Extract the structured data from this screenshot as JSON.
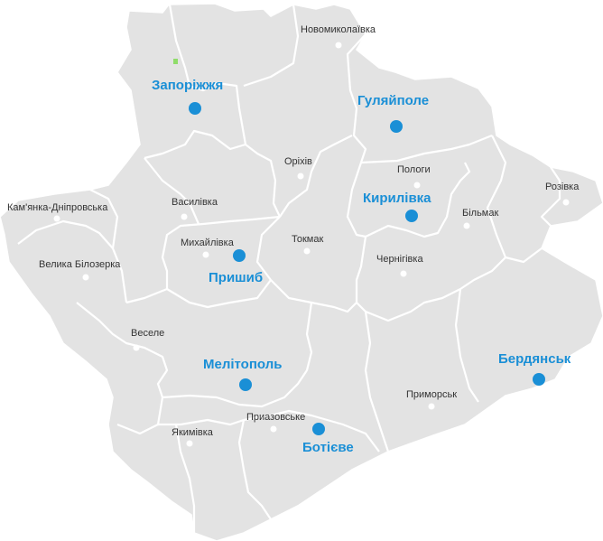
{
  "colors": {
    "land": "#e3e3e3",
    "border": "#ffffff",
    "major_city": "#1a8fd6",
    "minor_city": "#ffffff",
    "minor_label": "#333333",
    "background": "#ffffff"
  },
  "major_cities": [
    {
      "id": "zaporizhzhia",
      "name": "Запоріжжя"
    },
    {
      "id": "huliaipole",
      "name": "Гуляйполе"
    },
    {
      "id": "kyrylivka",
      "name": "Кирилівка"
    },
    {
      "id": "pryshyb",
      "name": "Пришиб"
    },
    {
      "id": "melitopol",
      "name": "Мелітополь"
    },
    {
      "id": "botieve",
      "name": "Ботієве"
    },
    {
      "id": "berdiansk",
      "name": "Бердянськ"
    }
  ],
  "minor_cities": [
    {
      "id": "novomykolaivka",
      "name": "Новомиколаївка"
    },
    {
      "id": "orikhiv",
      "name": "Оріхів"
    },
    {
      "id": "polohy",
      "name": "Пологи"
    },
    {
      "id": "rozivka",
      "name": "Розівка"
    },
    {
      "id": "bilmak",
      "name": "Більмак"
    },
    {
      "id": "kamianka",
      "name": "Кам'янка-Дніпровська"
    },
    {
      "id": "vasylivka",
      "name": "Василівка"
    },
    {
      "id": "mykhailivka",
      "name": "Михайлівка"
    },
    {
      "id": "tokmak",
      "name": "Токмак"
    },
    {
      "id": "chernihivka",
      "name": "Чернігівка"
    },
    {
      "id": "velyka_bilozerka",
      "name": "Велика Білозерка"
    },
    {
      "id": "vesele",
      "name": "Веселе"
    },
    {
      "id": "prymorsk",
      "name": "Приморськ"
    },
    {
      "id": "pryazovske",
      "name": "Приазовське"
    },
    {
      "id": "yakymivka",
      "name": "Якимівка"
    }
  ]
}
